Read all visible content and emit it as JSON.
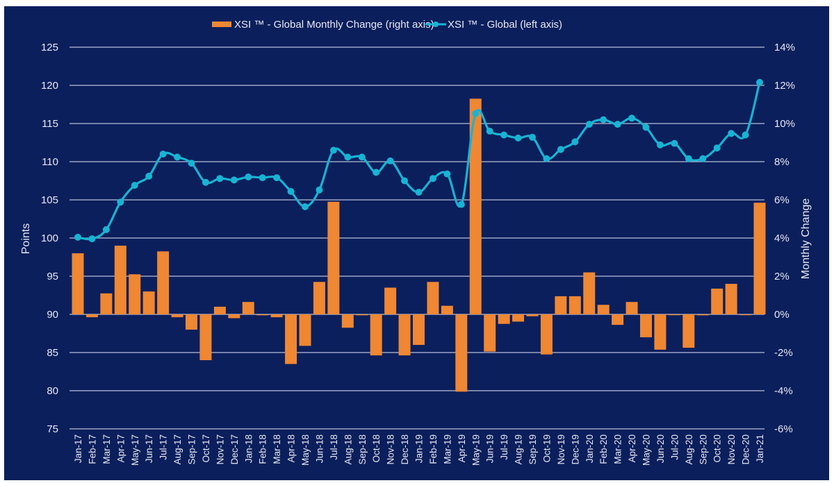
{
  "colors": {
    "background": "#0b1f5c",
    "bars": "#ef8733",
    "line": "#19b3d3",
    "grid": "#b8bfd8",
    "text": "#e6e9f2"
  },
  "chart_data": {
    "type": "bar+line",
    "title": "",
    "legend": {
      "placement": "top",
      "items": [
        {
          "name": "XSI ™ - Global Monthly Change (right axis)",
          "kind": "bar"
        },
        {
          "name": "XSI ™ - Global (left axis)",
          "kind": "line"
        }
      ]
    },
    "y_left": {
      "label": "Points",
      "range": [
        75,
        125
      ],
      "ticks": [
        "75",
        "80",
        "85",
        "90",
        "95",
        "100",
        "105",
        "110",
        "115",
        "120",
        "125"
      ]
    },
    "y_right": {
      "label": "Monthly Change",
      "range": [
        -6,
        14
      ],
      "ticks": [
        "-6%",
        "-4%",
        "-2%",
        "0%",
        "2%",
        "4%",
        "6%",
        "8%",
        "10%",
        "12%",
        "14%"
      ]
    },
    "grid": true,
    "categories": [
      "Jan-17",
      "Feb-17",
      "Mar-17",
      "Apr-17",
      "May-17",
      "Jun-17",
      "Jul-17",
      "Aug-17",
      "Sep-17",
      "Oct-17",
      "Nov-17",
      "Dec-17",
      "Jan-18",
      "Feb-18",
      "Mar-18",
      "Apr-18",
      "May-18",
      "Jun-18",
      "Jul-18",
      "Aug-18",
      "Sep-18",
      "Oct-18",
      "Nov-18",
      "Dec-18",
      "Jan-19",
      "Feb-19",
      "Mar-19",
      "Apr-19",
      "May-19",
      "Jun-19",
      "Jul-19",
      "Aug-19",
      "Sep-19",
      "Oct-19",
      "Nov-19",
      "Dec-19",
      "Jan-20",
      "Feb-20",
      "Mar-20",
      "Apr-20",
      "May-20",
      "Jun-20",
      "Jul-20",
      "Aug-20",
      "Sep-20",
      "Oct-20",
      "Nov-20",
      "Dec-20",
      "Jan-21"
    ],
    "series": [
      {
        "name": "XSI ™ - Global Monthly Change (right axis)",
        "type": "bar",
        "axis": "right",
        "unit": "%",
        "values": [
          3.2,
          -0.15,
          1.1,
          3.6,
          2.1,
          1.2,
          3.3,
          -0.15,
          -0.8,
          -2.4,
          0.4,
          -0.2,
          0.65,
          -0.05,
          -0.15,
          -2.6,
          -1.65,
          1.7,
          5.9,
          -0.7,
          -0.05,
          -2.15,
          1.4,
          -2.15,
          -1.6,
          1.7,
          0.45,
          -4.05,
          11.3,
          -1.95,
          -0.5,
          -0.38,
          -0.1,
          -2.1,
          0.95,
          0.95,
          2.2,
          0.5,
          -0.55,
          0.65,
          -1.2,
          -1.85,
          0.0,
          -1.75,
          -0.05,
          1.35,
          1.6,
          0.0,
          5.85
        ]
      },
      {
        "name": "XSI ™ - Global (left axis)",
        "type": "line",
        "axis": "left",
        "unit": "points",
        "values": [
          100.1,
          99.9,
          101.1,
          104.7,
          106.9,
          108.1,
          111.0,
          110.6,
          109.8,
          107.3,
          107.8,
          107.6,
          108.0,
          107.9,
          107.9,
          106.1,
          104.1,
          106.3,
          111.5,
          110.6,
          110.6,
          108.6,
          110.1,
          107.5,
          106.0,
          107.8,
          108.4,
          104.4,
          116.3,
          114.0,
          113.5,
          113.1,
          113.2,
          110.4,
          111.6,
          112.6,
          114.9,
          115.5,
          114.9,
          115.7,
          114.5,
          112.2,
          112.4,
          110.4,
          110.4,
          111.8,
          113.7,
          113.5,
          120.4
        ]
      }
    ]
  }
}
